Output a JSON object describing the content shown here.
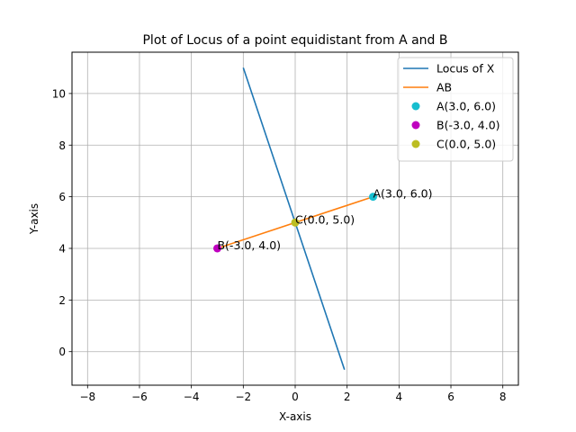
{
  "chart_data": {
    "type": "line",
    "title": "Plot of Locus of a point equidistant from A and B",
    "xlabel": "X-axis",
    "ylabel": "Y-axis",
    "xlim": [
      -8.6,
      8.6
    ],
    "ylim": [
      -1.3,
      11.6
    ],
    "xticks": [
      -8,
      -6,
      -4,
      -2,
      0,
      2,
      4,
      6,
      8
    ],
    "yticks": [
      0,
      2,
      4,
      6,
      8,
      10
    ],
    "grid": true,
    "legend_position": "top-right",
    "series": [
      {
        "name": "Locus of X",
        "kind": "line",
        "color": "#1f77b4",
        "x": [
          -2.0,
          1.9
        ],
        "y": [
          11.0,
          -0.7
        ]
      },
      {
        "name": "AB",
        "kind": "line",
        "color": "#ff7f0e",
        "x": [
          -3.0,
          3.0
        ],
        "y": [
          4.0,
          6.0
        ]
      },
      {
        "name": "A(3.0, 6.0)",
        "kind": "point",
        "color": "#17becf",
        "x": [
          3.0
        ],
        "y": [
          6.0
        ]
      },
      {
        "name": "B(-3.0, 4.0)",
        "kind": "point",
        "color": "#bf00bf",
        "x": [
          -3.0
        ],
        "y": [
          4.0
        ]
      },
      {
        "name": "C(0.0, 5.0)",
        "kind": "point",
        "color": "#bcbd22",
        "x": [
          0.0
        ],
        "y": [
          5.0
        ]
      }
    ],
    "annotations": [
      {
        "text": "A(3.0, 6.0)",
        "x": 3.0,
        "y": 6.0
      },
      {
        "text": "B(-3.0, 4.0)",
        "x": -3.0,
        "y": 4.0
      },
      {
        "text": "C(0.0, 5.0)",
        "x": 0.0,
        "y": 5.0
      }
    ]
  }
}
